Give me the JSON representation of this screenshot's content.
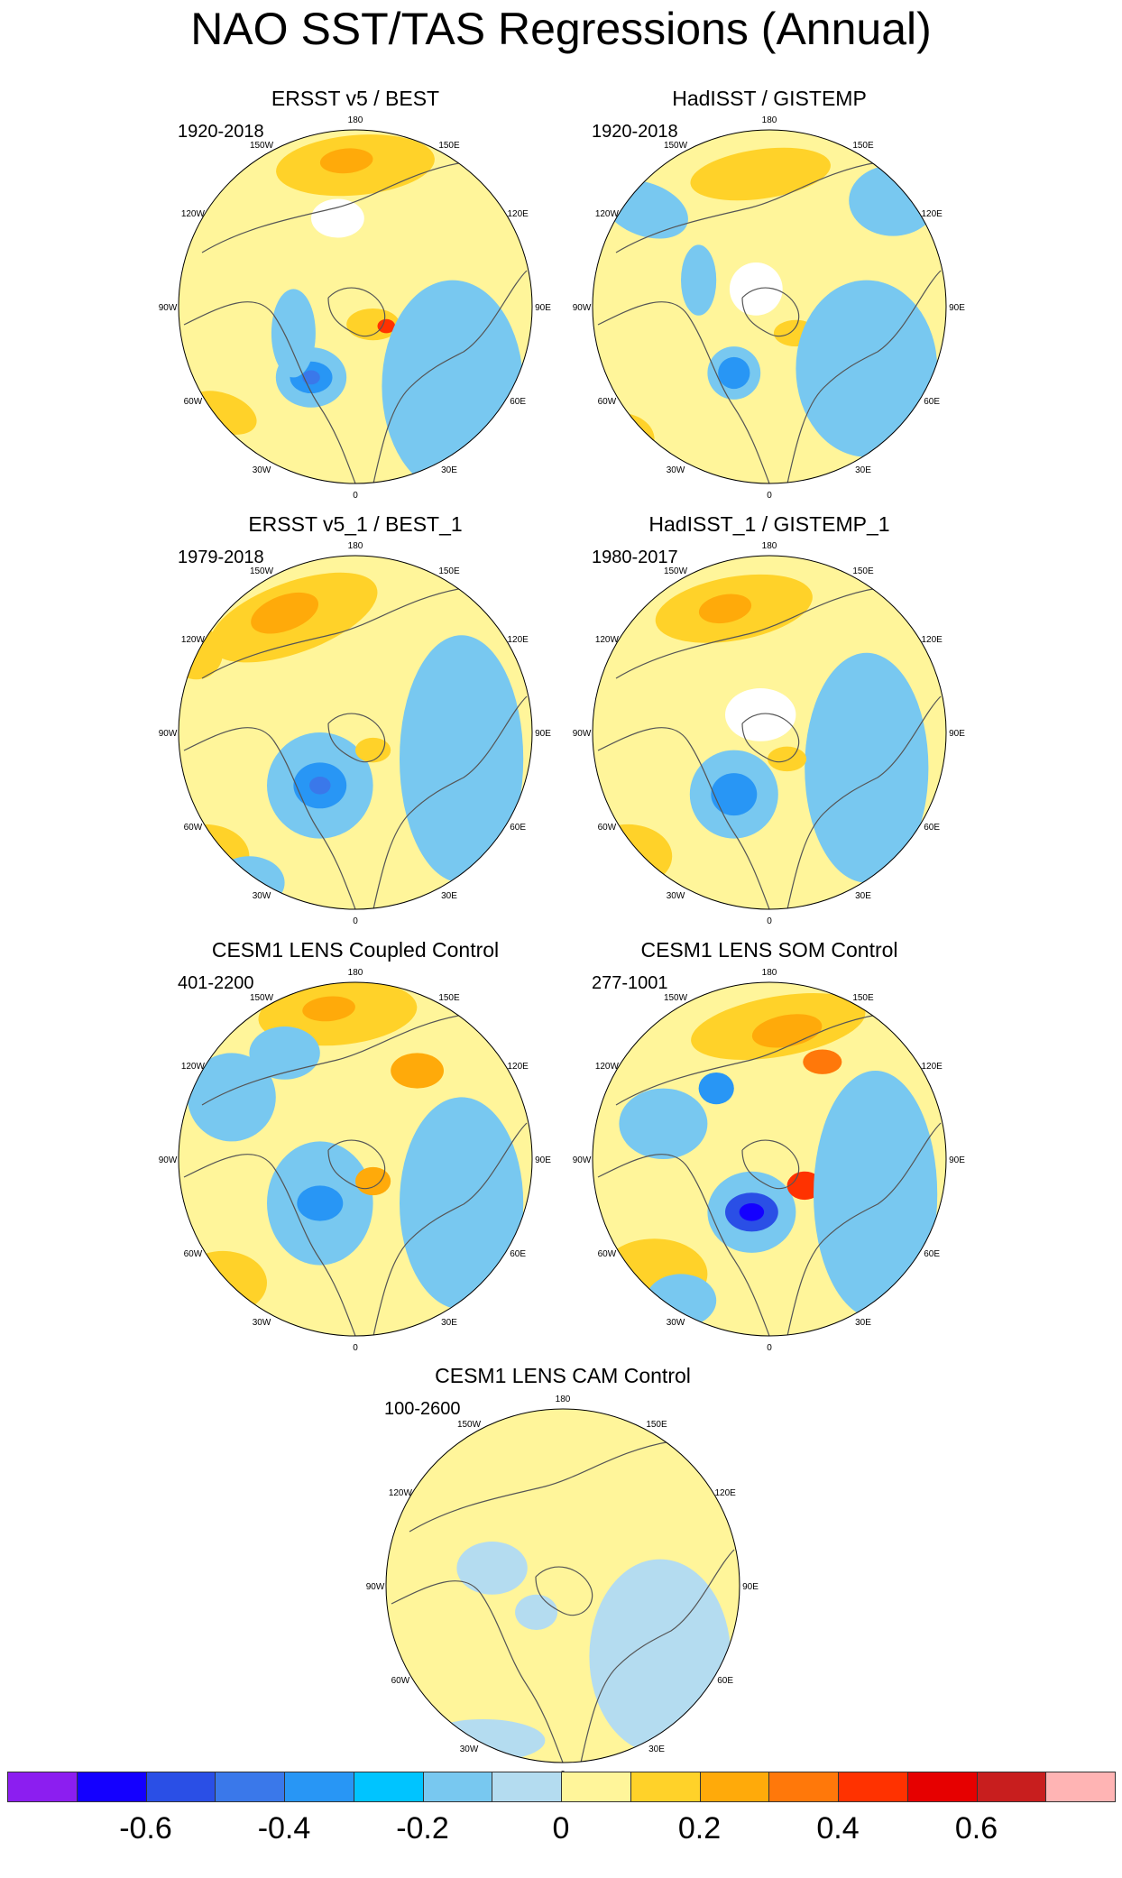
{
  "title": "NAO SST/TAS Regressions (Annual)",
  "panels": [
    {
      "title": "ERSST v5 / BEST",
      "period": "1920-2018"
    },
    {
      "title": "HadISST / GISTEMP",
      "period": "1920-2018"
    },
    {
      "title": "ERSST v5_1 / BEST_1",
      "period": "1979-2018"
    },
    {
      "title": "HadISST_1 / GISTEMP_1",
      "period": "1980-2017"
    },
    {
      "title": "CESM1 LENS Coupled Control",
      "period": "401-2200"
    },
    {
      "title": "CESM1 LENS SOM Control",
      "period": "277-1001"
    },
    {
      "title": "CESM1 LENS CAM Control",
      "period": "100-2600"
    }
  ],
  "longitude_labels": [
    "180",
    "150E",
    "120E",
    "90E",
    "60E",
    "30E",
    "0",
    "30W",
    "60W",
    "90W",
    "120W",
    "150W"
  ],
  "colorbar": {
    "colors": [
      "#8c1ef0",
      "#1400ff",
      "#2a4fe6",
      "#3a78ea",
      "#2896f5",
      "#00c4ff",
      "#78c8f0",
      "#b4dcf0",
      "#fff59a",
      "#ffd229",
      "#ffaa0a",
      "#ff780a",
      "#ff3200",
      "#e60000",
      "#c81e1e",
      "#ffb4b4"
    ],
    "tick_labels": [
      "-0.6",
      "-0.4",
      "-0.2",
      "0",
      "0.2",
      "0.4",
      "0.6"
    ]
  }
}
